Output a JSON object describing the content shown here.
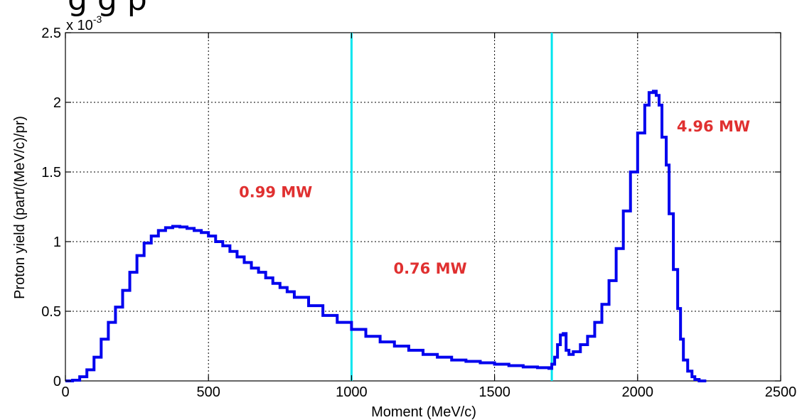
{
  "chart_data": {
    "type": "line",
    "cut_off_title": "g      g p",
    "xlabel": "Moment (MeV/c)",
    "ylabel": "Proton yield (part/(MeV/c)/pr)",
    "y_multiplier_label": "x 10",
    "y_multiplier_exp": "-3",
    "xlim": [
      0,
      2500
    ],
    "ylim": [
      0,
      2.5
    ],
    "x_ticks": [
      0,
      500,
      1000,
      1500,
      2000,
      2500
    ],
    "x_tick_labels": [
      "0",
      "500",
      "1000",
      "1500",
      "2000",
      "2500"
    ],
    "y_ticks": [
      0,
      0.5,
      1,
      1.5,
      2,
      2.5
    ],
    "y_tick_labels": [
      "0",
      "0.5",
      "1",
      "1.5",
      "2",
      "2.5"
    ],
    "grid": true,
    "series": [
      {
        "color": "#0000ee",
        "x": [
          0,
          25,
          50,
          75,
          100,
          125,
          150,
          175,
          200,
          225,
          250,
          275,
          300,
          325,
          350,
          375,
          400,
          425,
          450,
          475,
          500,
          525,
          550,
          575,
          600,
          625,
          650,
          675,
          700,
          725,
          750,
          775,
          800,
          850,
          900,
          950,
          1000,
          1050,
          1100,
          1150,
          1200,
          1250,
          1300,
          1350,
          1400,
          1450,
          1500,
          1550,
          1600,
          1650,
          1690,
          1700,
          1710,
          1720,
          1730,
          1740,
          1750,
          1760,
          1775,
          1800,
          1825,
          1850,
          1875,
          1900,
          1925,
          1950,
          1975,
          2000,
          2025,
          2040,
          2055,
          2065,
          2075,
          2085,
          2100,
          2110,
          2125,
          2140,
          2150,
          2160,
          2175,
          2190,
          2200,
          2215,
          2230,
          2240
        ],
        "y": [
          0,
          0.005,
          0.03,
          0.08,
          0.17,
          0.3,
          0.42,
          0.53,
          0.65,
          0.78,
          0.9,
          0.99,
          1.04,
          1.08,
          1.1,
          1.11,
          1.105,
          1.095,
          1.08,
          1.065,
          1.04,
          1.0,
          0.97,
          0.93,
          0.89,
          0.85,
          0.81,
          0.78,
          0.74,
          0.7,
          0.67,
          0.64,
          0.6,
          0.54,
          0.47,
          0.42,
          0.37,
          0.32,
          0.28,
          0.25,
          0.22,
          0.19,
          0.17,
          0.15,
          0.14,
          0.13,
          0.12,
          0.11,
          0.1,
          0.095,
          0.09,
          0.12,
          0.17,
          0.26,
          0.33,
          0.34,
          0.22,
          0.19,
          0.21,
          0.26,
          0.32,
          0.42,
          0.55,
          0.72,
          0.95,
          1.22,
          1.5,
          1.78,
          1.98,
          2.07,
          2.08,
          2.05,
          1.98,
          1.75,
          1.55,
          1.2,
          0.8,
          0.52,
          0.3,
          0.15,
          0.07,
          0.03,
          0.01,
          0,
          0,
          0
        ]
      }
    ],
    "vertical_lines": [
      {
        "x": 1000,
        "color": "#00e5ee"
      },
      {
        "x": 1700,
        "color": "#00e5ee"
      }
    ],
    "annotations": [
      {
        "text": "0.99 MW",
        "x": 735,
        "y": 1.32,
        "color": "#e03030"
      },
      {
        "text": "0.76 MW",
        "x": 1275,
        "y": 0.77,
        "color": "#e03030"
      },
      {
        "text": "4.96 MW",
        "x": 2265,
        "y": 1.79,
        "color": "#e03030"
      }
    ]
  }
}
